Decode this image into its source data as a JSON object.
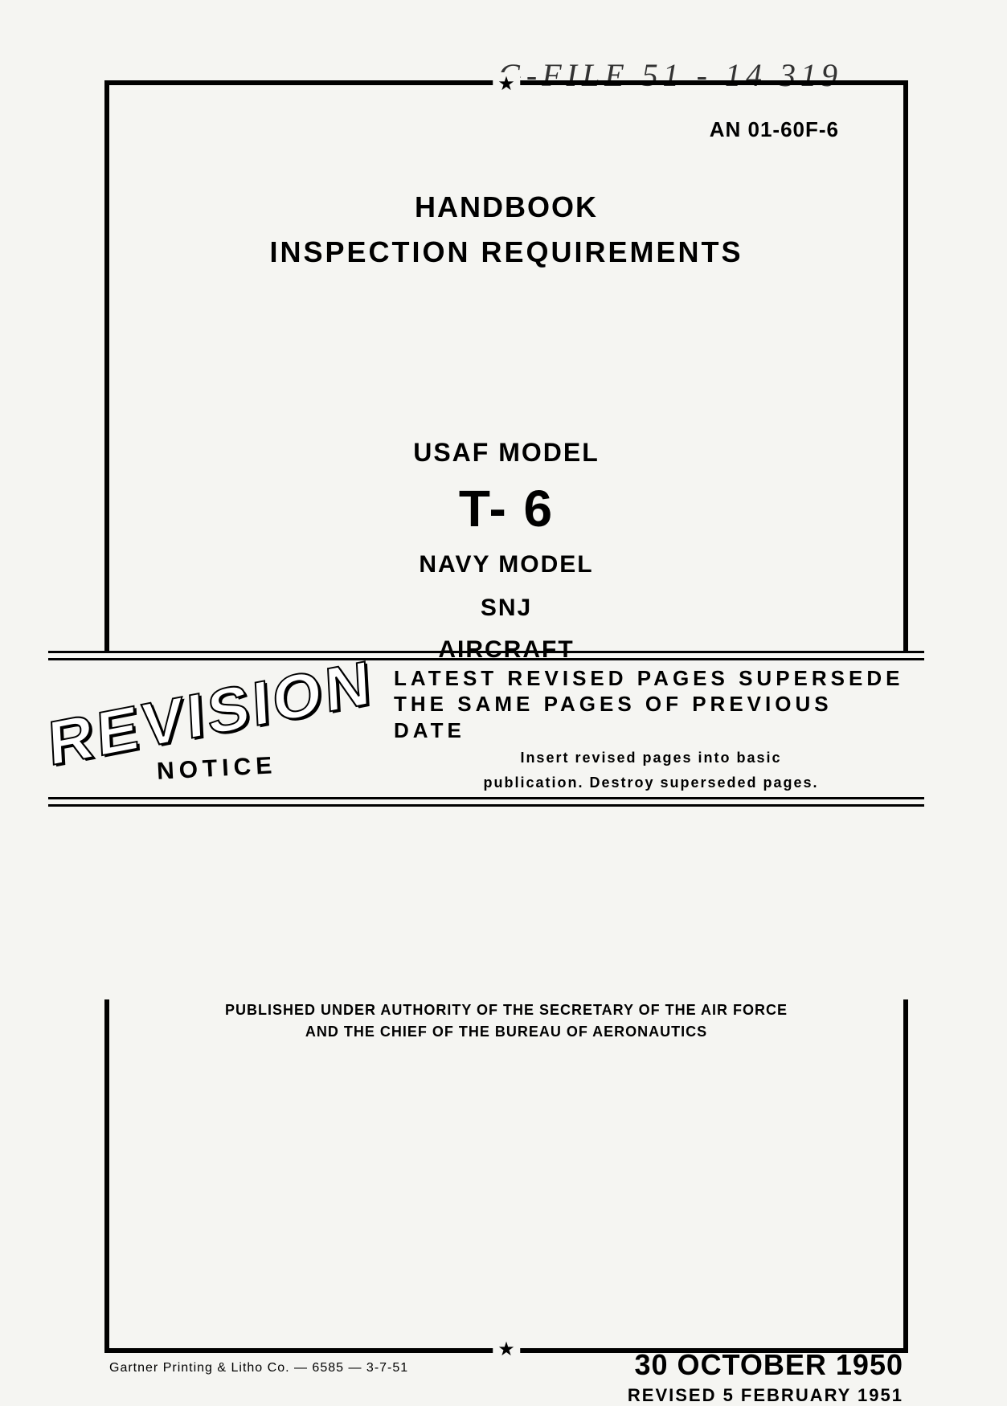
{
  "header": {
    "handwritten": "G-FILE   51 - 14 319",
    "doc_number": "AN 01-60F-6",
    "smudge": ""
  },
  "title": {
    "line1": "HANDBOOK",
    "line2": "INSPECTION  REQUIREMENTS"
  },
  "model": {
    "usaf_label": "USAF  MODEL",
    "designation": "T- 6",
    "navy_label": "NAVY  MODEL",
    "navy_designation": "SNJ",
    "aircraft": "AIRCRAFT"
  },
  "revision": {
    "word": "REVISION",
    "notice": "NOTICE",
    "headline1": "LATEST REVISED PAGES SUPERSEDE",
    "headline2": "THE SAME PAGES OF PREVIOUS DATE",
    "sub1": "Insert revised pages into basic",
    "sub2": "publication. Destroy superseded pages."
  },
  "authority": {
    "line1": "PUBLISHED UNDER AUTHORITY OF THE SECRETARY OF THE AIR FORCE",
    "line2": "AND THE CHIEF OF THE BUREAU OF AERONAUTICS"
  },
  "footer": {
    "printer": "Gartner Printing & Litho Co. — 6585 — 3-7-51",
    "date_main": "30 OCTOBER 1950",
    "date_revised": "REVISED 5 FEBRUARY 1951"
  },
  "glyphs": {
    "star": "★"
  },
  "colors": {
    "bg": "#f5f5f2",
    "ink": "#000000"
  }
}
